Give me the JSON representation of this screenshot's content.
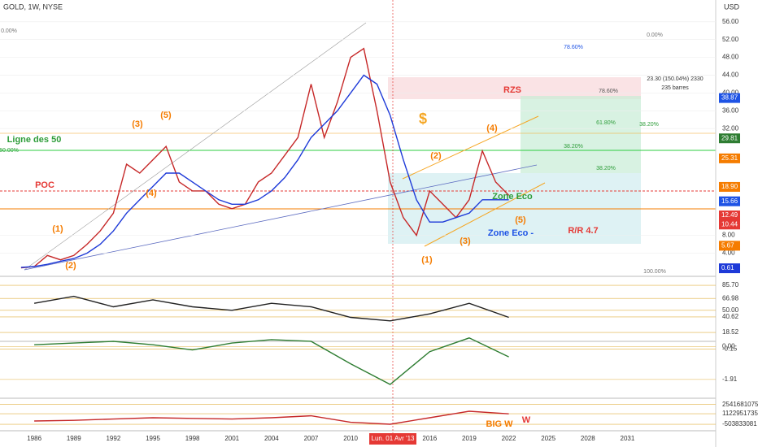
{
  "header": {
    "symbol": "GOLD, 1W, NYSE",
    "currency": "USD"
  },
  "cursor_label": "Lun. 01 Avr '13",
  "annotations": [
    "(1)",
    "(2)",
    "(3)",
    "(4)",
    "(5)",
    "(1)",
    "(2)",
    "(3)",
    "(4)",
    "(5)",
    "Ligne des 50",
    "POC",
    "$",
    "RZS",
    "Zone Eco",
    "Zone Eco -",
    "R/R 4.7",
    "BIG W",
    "W",
    "23.30 (150.04%) 2330",
    "235 barres",
    "0.00%",
    "50.00%",
    "100.00%",
    "0.00%",
    "78.60%",
    "78.60%",
    "61.80%",
    "38.20%",
    "38.20%",
    "38.20%"
  ],
  "chart_data": [
    {
      "type": "line",
      "x": [
        1985,
        1986,
        1987,
        1988,
        1989,
        1990,
        1991,
        1992,
        1993,
        1994,
        1995,
        1996,
        1997,
        1998,
        1999,
        2000,
        2001,
        2002,
        2003,
        2004,
        2005,
        2006,
        2007,
        2008,
        2009,
        2010,
        2011,
        2012,
        2013,
        2014,
        2015,
        2016,
        2017,
        2018,
        2019,
        2020,
        2021,
        2022
      ],
      "series": [
        {
          "color": "#c62828",
          "values": [
            0.7,
            1,
            3.5,
            2.5,
            3.5,
            6,
            9,
            13,
            24,
            22,
            25,
            28,
            20,
            18,
            18,
            15,
            14,
            15,
            20,
            22,
            26,
            30,
            42,
            30,
            38,
            48,
            50,
            36,
            20,
            12,
            8,
            18,
            15,
            12,
            16,
            27,
            20,
            17
          ]
        },
        {
          "color": "#1e3ad8",
          "values": [
            0.8,
            1,
            1.5,
            2.2,
            2.8,
            4,
            6,
            9,
            13,
            16,
            19,
            22,
            22,
            20,
            18,
            16,
            15,
            15,
            16,
            18,
            21,
            25,
            30,
            33,
            36,
            40,
            44,
            42,
            35,
            25,
            16,
            11,
            11,
            12,
            13,
            16,
            16,
            16
          ]
        }
      ],
      "xlim": [
        1983.4,
        2037.7
      ],
      "xticks": [
        1986,
        1989,
        1992,
        1995,
        1998,
        2001,
        2004,
        2007,
        2010,
        2016,
        2019,
        2022,
        2025,
        2028,
        2031
      ],
      "ylim": [
        -1.2,
        60.9
      ],
      "yticks": [
        {
          "value": 4,
          "label": "4.00"
        },
        {
          "value": 8,
          "label": "8.00"
        },
        {
          "value": 32,
          "label": "32.00"
        },
        {
          "value": 36,
          "label": "36.00"
        },
        {
          "value": 40,
          "label": "40.00"
        },
        {
          "value": 44,
          "label": "44.00"
        },
        {
          "value": 48,
          "label": "48.00"
        },
        {
          "value": 52,
          "label": "52.00"
        },
        {
          "value": 56,
          "label": "56.00"
        }
      ],
      "price_tags": [
        {
          "value": 38.87,
          "color": "#1e53e5"
        },
        {
          "value": 29.81,
          "color": "#2e7d32"
        },
        {
          "value": 25.31,
          "color": "#f57c00"
        },
        {
          "value": 18.9,
          "label": "18.90",
          "color": "#f57c00"
        },
        {
          "value": 15.66,
          "color": "#1e53e5"
        },
        {
          "value": 12.49,
          "color": "#e53935"
        },
        {
          "value": 10.44,
          "color": "#e53935"
        },
        {
          "value": 5.67,
          "color": "#f57c00"
        },
        {
          "value": 0.61,
          "color": "#1e3ad8"
        }
      ]
    },
    {
      "type": "line",
      "x": [
        1986,
        1989,
        1992,
        1995,
        1998,
        2001,
        2004,
        2007,
        2010,
        2013,
        2016,
        2019,
        2022
      ],
      "series": [
        {
          "color": "#222222",
          "values": [
            60,
            70,
            55,
            65,
            55,
            50,
            60,
            55,
            40,
            35,
            45,
            60,
            40
          ]
        }
      ],
      "ylim": [
        5.8,
        95
      ],
      "yticks": [
        {
          "value": 85.7,
          "label": "85.70"
        },
        66.98,
        {
          "value": 50,
          "label": "50.00"
        },
        40.62,
        18.52
      ]
    },
    {
      "type": "line",
      "x": [
        1986,
        1989,
        1992,
        1995,
        1998,
        2001,
        2004,
        2007,
        2010,
        2013,
        2016,
        2019,
        2022
      ],
      "series": [
        {
          "color": "#2e7d32",
          "values": [
            0.1,
            0.2,
            0.3,
            0.1,
            -0.2,
            0.2,
            0.4,
            0.3,
            -1,
            -2.2,
            -0.3,
            0.5,
            -0.6
          ]
        }
      ],
      "ylim": [
        -3,
        0.3
      ],
      "yticks": [
        {
          "value": 0,
          "label": "0.00"
        },
        -0.15,
        -1.91
      ]
    },
    {
      "type": "line",
      "x": [
        1986,
        1989,
        1992,
        1995,
        1998,
        2001,
        2004,
        2007,
        2010,
        2013,
        2016,
        2019,
        2022
      ],
      "series": [
        {
          "color": "#c62828",
          "values": [
            0,
            100000000,
            300000000,
            500000000,
            400000000,
            300000000,
            500000000,
            800000000,
            -200000000,
            -500000000,
            500000000,
            1500000000,
            1100000000
          ]
        }
      ],
      "ylim": [
        -2750000000,
        3250000000
      ],
      "yticks": [
        2541681075,
        1122951735,
        -503833081
      ]
    }
  ]
}
